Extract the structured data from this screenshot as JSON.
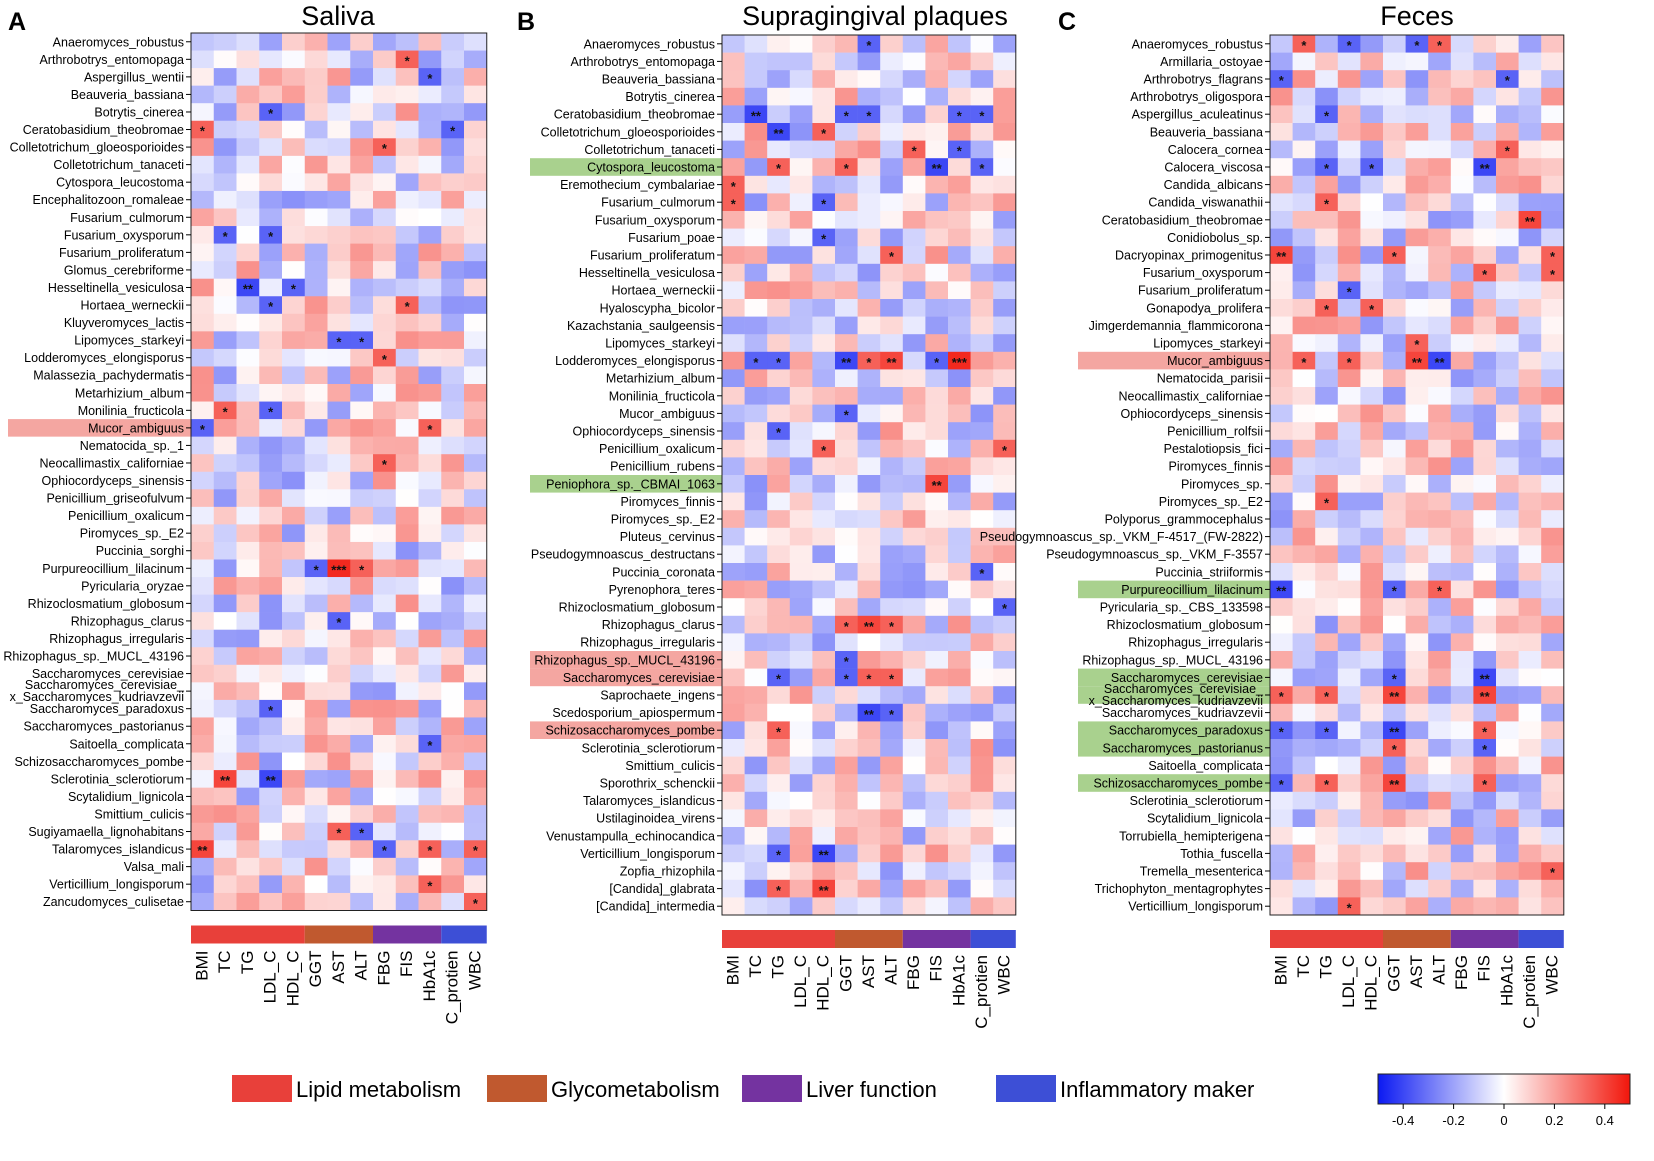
{
  "chart_data": [
    {
      "type": "heatmap",
      "panel": "A",
      "title": "Saliva",
      "x": [
        "BMI",
        "TC",
        "TG",
        "LDL_C",
        "HDL_C",
        "GGT",
        "AST",
        "ALT",
        "FBG",
        "FIS",
        "HbA1c",
        "C_protien",
        "WBC"
      ],
      "y": [
        "Anaeromyces_robustus",
        "Arthrobotrys_entomopaga",
        "Aspergillus_wentii",
        "Beauveria_bassiana",
        "Botrytis_cinerea",
        "Ceratobasidium_theobromae",
        "Colletotrichum_gloeosporioides",
        "Colletotrichum_tanaceti",
        "Cytospora_leucostoma",
        "Encephalitozoon_romaleae",
        "Fusarium_culmorum",
        "Fusarium_oxysporum",
        "Fusarium_proliferatum",
        "Glomus_cerebriforme",
        "Hesseltinella_vesiculosa",
        "Hortaea_werneckii",
        "Kluyveromyces_lactis",
        "Lipomyces_starkeyi",
        "Lodderomyces_elongisporus",
        "Malassezia_pachydermatis",
        "Metarhizium_album",
        "Monilinia_fructicola",
        "Mucor_ambiguus",
        "Nematocida_sp._1",
        "Neocallimastix_californiae",
        "Ophiocordyceps_sinensis",
        "Penicillium_griseofulvum",
        "Penicillium_oxalicum",
        "Piromyces_sp._E2",
        "Puccinia_sorghi",
        "Purpureocillium_lilacinum",
        "Pyricularia_oryzae",
        "Rhizoclosmatium_globosum",
        "Rhizophagus_clarus",
        "Rhizophagus_irregularis",
        "Rhizophagus_sp._MUCL_43196",
        "Saccharomyces_cerevisiae",
        "Saccharomyces_cerevisiae_\nx_Saccharomyces_kudriavzevii",
        "Saccharomyces_paradoxus",
        "Saccharomyces_pastorianus",
        "Saitoella_complicata",
        "Schizosaccharomyces_pombe",
        "Sclerotinia_sclerotiorum",
        "Scytalidium_lignicola",
        "Smittium_culicis",
        "Sugiyamaella_lignohabitans",
        "Talaromyces_islandicus",
        "Valsa_mali",
        "Verticillium_longisporum",
        "Zancudomyces_culisetae"
      ],
      "highlights": [
        {
          "row": 22,
          "color": "#f4a6a1"
        }
      ],
      "stars": [
        [
          1,
          9,
          "*"
        ],
        [
          2,
          10,
          "*"
        ],
        [
          4,
          3,
          "*"
        ],
        [
          5,
          0,
          "*"
        ],
        [
          5,
          11,
          "*"
        ],
        [
          6,
          8,
          "*"
        ],
        [
          11,
          1,
          "*"
        ],
        [
          11,
          3,
          "*"
        ],
        [
          14,
          2,
          "**"
        ],
        [
          14,
          4,
          "*"
        ],
        [
          15,
          3,
          "*"
        ],
        [
          15,
          9,
          "*"
        ],
        [
          17,
          6,
          "*"
        ],
        [
          17,
          7,
          "*"
        ],
        [
          18,
          8,
          "*"
        ],
        [
          21,
          1,
          "*"
        ],
        [
          21,
          3,
          "*"
        ],
        [
          22,
          0,
          "*"
        ],
        [
          22,
          10,
          "*"
        ],
        [
          24,
          8,
          "*"
        ],
        [
          30,
          5,
          "*"
        ],
        [
          30,
          6,
          "***"
        ],
        [
          30,
          7,
          "*"
        ],
        [
          33,
          6,
          "*"
        ],
        [
          38,
          3,
          "*"
        ],
        [
          40,
          10,
          "*"
        ],
        [
          42,
          1,
          "**"
        ],
        [
          42,
          3,
          "**"
        ],
        [
          45,
          6,
          "*"
        ],
        [
          45,
          7,
          "*"
        ],
        [
          46,
          0,
          "**"
        ],
        [
          46,
          8,
          "*"
        ],
        [
          46,
          10,
          "*"
        ],
        [
          46,
          12,
          "*"
        ],
        [
          48,
          10,
          "*"
        ],
        [
          49,
          12,
          "*"
        ]
      ],
      "seed": 11
    },
    {
      "type": "heatmap",
      "panel": "B",
      "title": "Supragingival plaques",
      "x": [
        "BMI",
        "TC",
        "TG",
        "LDL_C",
        "HDL_C",
        "GGT",
        "AST",
        "ALT",
        "FBG",
        "FIS",
        "HbA1c",
        "C_protien",
        "WBC"
      ],
      "y": [
        "Anaeromyces_robustus",
        "Arthrobotrys_entomopaga",
        "Beauveria_bassiana",
        "Botrytis_cinerea",
        "Ceratobasidium_theobromae",
        "Colletotrichum_gloeosporioides",
        "Colletotrichum_tanaceti",
        "Cytospora_leucostoma",
        "Eremothecium_cymbalariae",
        "Fusarium_culmorum",
        "Fusarium_oxysporum",
        "Fusarium_poae",
        "Fusarium_proliferatum",
        "Hesseltinella_vesiculosa",
        "Hortaea_werneckii",
        "Hyaloscypha_bicolor",
        "Kazachstania_saulgeensis",
        "Lipomyces_starkeyi",
        "Lodderomyces_elongisporus",
        "Metarhizium_album",
        "Monilinia_fructicola",
        "Mucor_ambiguus",
        "Ophiocordyceps_sinensis",
        "Penicillium_oxalicum",
        "Penicillium_rubens",
        "Peniophora_sp._CBMAI_1063",
        "Piromyces_finnis",
        "Piromyces_sp._E2",
        "Pluteus_cervinus",
        "Pseudogymnoascus_destructans",
        "Puccinia_coronata",
        "Pyrenophora_teres",
        "Rhizoclosmatium_globosum",
        "Rhizophagus_clarus",
        "Rhizophagus_irregularis",
        "Rhizophagus_sp._MUCL_43196",
        "Saccharomyces_cerevisiae",
        "Saprochaete_ingens",
        "Scedosporium_apiospermum",
        "Schizosaccharomyces_pombe",
        "Sclerotinia_sclerotiorum",
        "Smittium_culicis",
        "Sporothrix_schenckii",
        "Talaromyces_islandicus",
        "Ustilaginoidea_virens",
        "Venustampulla_echinocandica",
        "Verticillium_longisporum",
        "Zopfia_rhizophila",
        "[Candida]_glabrata",
        "[Candida]_intermedia"
      ],
      "highlights": [
        {
          "row": 7,
          "color": "#a9d18e"
        },
        {
          "row": 25,
          "color": "#a9d18e"
        },
        {
          "row": 35,
          "color": "#f4a6a1"
        },
        {
          "row": 36,
          "color": "#f4a6a1"
        },
        {
          "row": 39,
          "color": "#f4a6a1"
        }
      ],
      "stars": [
        [
          0,
          6,
          "*"
        ],
        [
          4,
          1,
          "**"
        ],
        [
          4,
          5,
          "*"
        ],
        [
          4,
          6,
          "*"
        ],
        [
          4,
          10,
          "*"
        ],
        [
          4,
          11,
          "*"
        ],
        [
          5,
          2,
          "**"
        ],
        [
          5,
          4,
          "*"
        ],
        [
          6,
          8,
          "*"
        ],
        [
          6,
          10,
          "*"
        ],
        [
          7,
          2,
          "*"
        ],
        [
          7,
          5,
          "*"
        ],
        [
          7,
          9,
          "**"
        ],
        [
          7,
          11,
          "*"
        ],
        [
          8,
          0,
          "*"
        ],
        [
          9,
          0,
          "*"
        ],
        [
          9,
          4,
          "*"
        ],
        [
          11,
          4,
          "*"
        ],
        [
          12,
          7,
          "*"
        ],
        [
          18,
          1,
          "*"
        ],
        [
          18,
          2,
          "*"
        ],
        [
          18,
          5,
          "**"
        ],
        [
          18,
          6,
          "*"
        ],
        [
          18,
          7,
          "**"
        ],
        [
          18,
          9,
          "*"
        ],
        [
          18,
          10,
          "***"
        ],
        [
          21,
          5,
          "*"
        ],
        [
          22,
          2,
          "*"
        ],
        [
          23,
          4,
          "*"
        ],
        [
          23,
          12,
          "*"
        ],
        [
          25,
          9,
          "**"
        ],
        [
          30,
          11,
          "*"
        ],
        [
          32,
          12,
          "*"
        ],
        [
          33,
          5,
          "*"
        ],
        [
          33,
          6,
          "**"
        ],
        [
          33,
          7,
          "*"
        ],
        [
          35,
          5,
          "*"
        ],
        [
          36,
          2,
          "*"
        ],
        [
          36,
          5,
          "*"
        ],
        [
          36,
          6,
          "*"
        ],
        [
          36,
          7,
          "*"
        ],
        [
          38,
          6,
          "**"
        ],
        [
          38,
          7,
          "*"
        ],
        [
          39,
          2,
          "*"
        ],
        [
          46,
          2,
          "*"
        ],
        [
          46,
          4,
          "**"
        ],
        [
          48,
          2,
          "*"
        ],
        [
          48,
          4,
          "**"
        ]
      ],
      "seed": 23
    },
    {
      "type": "heatmap",
      "panel": "C",
      "title": "Feces",
      "x": [
        "BMI",
        "TC",
        "TG",
        "LDL_C",
        "HDL_C",
        "GGT",
        "AST",
        "ALT",
        "FBG",
        "FIS",
        "HbA1c",
        "C_protien",
        "WBC"
      ],
      "y": [
        "Anaeromyces_robustus",
        "Armillaria_ostoyae",
        "Arthrobotrys_flagrans",
        "Arthrobotrys_oligospora",
        "Aspergillus_aculeatinus",
        "Beauveria_bassiana",
        "Calocera_cornea",
        "Calocera_viscosa",
        "Candida_albicans",
        "Candida_viswanathii",
        "Ceratobasidium_theobromae",
        "Conidiobolus_sp.",
        "Dacryopinax_primogenitus",
        "Fusarium_oxysporum",
        "Fusarium_proliferatum",
        "Gonapodya_prolifera",
        "Jimgerdemannia_flammicorona",
        "Lipomyces_starkeyi",
        "Mucor_ambiguus",
        "Nematocida_parisii",
        "Neocallimastix_californiae",
        "Ophiocordyceps_sinensis",
        "Penicillium_rolfsii",
        "Pestalotiopsis_fici",
        "Piromyces_finnis",
        "Piromyces_sp.",
        "Piromyces_sp._E2",
        "Polyporus_grammocephalus",
        "Pseudogymnoascus_sp._VKM_F-4517_(FW-2822)",
        "Pseudogymnoascus_sp._VKM_F-3557",
        "Puccinia_striiformis",
        "Purpureocillium_lilacinum",
        "Pyricularia_sp._CBS_133598",
        "Rhizoclosmatium_globosum",
        "Rhizophagus_irregularis",
        "Rhizophagus_sp._MUCL_43196",
        "Saccharomyces_cerevisiae",
        "Saccharomyces_cerevisiae_\nx_Saccharomyces_kudriavzevii",
        "Saccharomyces_kudriavzevii",
        "Saccharomyces_paradoxus",
        "Saccharomyces_pastorianus",
        "Saitoella_complicata",
        "Schizosaccharomyces_pombe",
        "Sclerotinia_sclerotiorum",
        "Scytalidium_lignicola",
        "Torrubiella_hemipterigena",
        "Tothia_fuscella",
        "Tremella_mesenterica",
        "Trichophyton_mentagrophytes",
        "Verticillium_longisporum"
      ],
      "highlights": [
        {
          "row": 18,
          "color": "#f4a6a1"
        },
        {
          "row": 31,
          "color": "#a9d18e"
        },
        {
          "row": 36,
          "color": "#a9d18e"
        },
        {
          "row": 37,
          "color": "#a9d18e"
        },
        {
          "row": 39,
          "color": "#a9d18e"
        },
        {
          "row": 40,
          "color": "#a9d18e"
        },
        {
          "row": 42,
          "color": "#a9d18e"
        }
      ],
      "stars": [
        [
          0,
          1,
          "*"
        ],
        [
          0,
          3,
          "*"
        ],
        [
          0,
          6,
          "*"
        ],
        [
          0,
          7,
          "*"
        ],
        [
          2,
          0,
          "*"
        ],
        [
          2,
          10,
          "*"
        ],
        [
          4,
          2,
          "*"
        ],
        [
          6,
          10,
          "*"
        ],
        [
          7,
          2,
          "*"
        ],
        [
          7,
          4,
          "*"
        ],
        [
          7,
          9,
          "**"
        ],
        [
          9,
          2,
          "*"
        ],
        [
          10,
          11,
          "**"
        ],
        [
          12,
          0,
          "**"
        ],
        [
          12,
          5,
          "*"
        ],
        [
          12,
          12,
          "*"
        ],
        [
          13,
          9,
          "*"
        ],
        [
          13,
          12,
          "*"
        ],
        [
          14,
          3,
          "*"
        ],
        [
          15,
          2,
          "*"
        ],
        [
          15,
          4,
          "*"
        ],
        [
          17,
          6,
          "*"
        ],
        [
          18,
          1,
          "*"
        ],
        [
          18,
          3,
          "*"
        ],
        [
          18,
          6,
          "**"
        ],
        [
          18,
          7,
          "**"
        ],
        [
          26,
          2,
          "*"
        ],
        [
          31,
          0,
          "**"
        ],
        [
          31,
          5,
          "*"
        ],
        [
          31,
          7,
          "*"
        ],
        [
          36,
          5,
          "*"
        ],
        [
          36,
          9,
          "**"
        ],
        [
          37,
          0,
          "*"
        ],
        [
          37,
          2,
          "*"
        ],
        [
          37,
          5,
          "**"
        ],
        [
          37,
          9,
          "**"
        ],
        [
          39,
          0,
          "*"
        ],
        [
          39,
          2,
          "*"
        ],
        [
          39,
          5,
          "**"
        ],
        [
          39,
          9,
          "*"
        ],
        [
          40,
          5,
          "*"
        ],
        [
          40,
          9,
          "*"
        ],
        [
          42,
          0,
          "*"
        ],
        [
          42,
          2,
          "*"
        ],
        [
          42,
          5,
          "**"
        ],
        [
          42,
          9,
          "*"
        ],
        [
          47,
          12,
          "*"
        ],
        [
          49,
          3,
          "*"
        ]
      ],
      "seed": 37
    }
  ],
  "panel_letters": [
    "A",
    "B",
    "C"
  ],
  "groups": [
    {
      "name": "Lipid metabolism",
      "color": "#e8403a",
      "cols": [
        0,
        4
      ]
    },
    {
      "name": "Glycometabolism",
      "color": "#c0592f",
      "cols": [
        5,
        7
      ]
    },
    {
      "name": "Liver function",
      "color": "#7433a0",
      "cols": [
        8,
        10
      ]
    },
    {
      "name": "Inflammatory maker",
      "color": "#3d4fd6",
      "cols": [
        11,
        12
      ]
    }
  ],
  "colorbar": {
    "min": -0.5,
    "max": 0.5,
    "ticks": [
      -0.4,
      -0.2,
      0,
      0.2,
      0.4
    ],
    "tick_labels": [
      "-0.4",
      "-0.2",
      "0",
      "0.2",
      "0.4"
    ],
    "low_color": "#0b19f2",
    "mid_color": "#ffffff",
    "high_color": "#f2160b"
  }
}
